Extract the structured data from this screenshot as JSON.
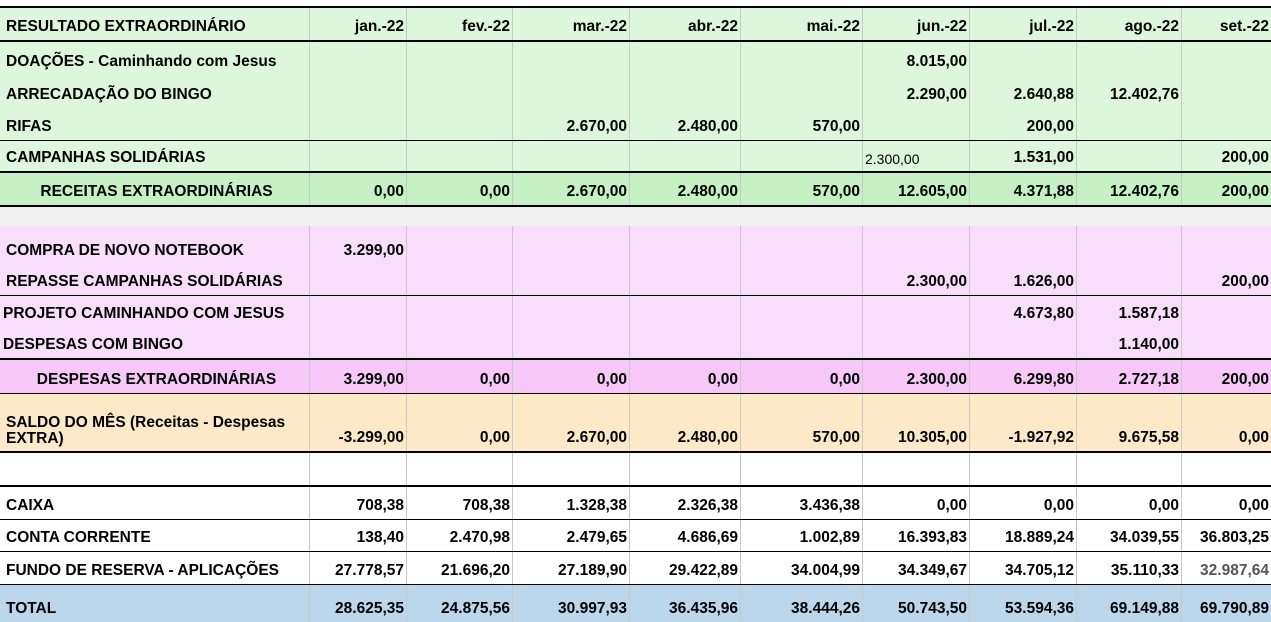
{
  "header": {
    "title": "RESULTADO EXTRAORDINÁRIO",
    "months": [
      "jan.-22",
      "fev.-22",
      "mar.-22",
      "abr.-22",
      "mai.-22",
      "jun.-22",
      "jul.-22",
      "ago.-22",
      "set.-22"
    ]
  },
  "receitas": [
    {
      "label": "DOAÇÕES - Caminhando com Jesus",
      "values": [
        "",
        "",
        "",
        "",
        "",
        "8.015,00",
        "",
        "",
        ""
      ]
    },
    {
      "label": "ARRECADAÇÃO DO BINGO",
      "values": [
        "",
        "",
        "",
        "",
        "",
        "2.290,00",
        "2.640,88",
        "12.402,76",
        ""
      ]
    },
    {
      "label": "RIFAS",
      "values": [
        "",
        "",
        "2.670,00",
        "2.480,00",
        "570,00",
        "",
        "200,00",
        "",
        ""
      ]
    },
    {
      "label": "CAMPANHAS SOLIDÁRIAS",
      "values": [
        "",
        "",
        "",
        "",
        "",
        "2.300,00",
        "1.531,00",
        "",
        "200,00"
      ]
    }
  ],
  "receitas_total": {
    "label": "RECEITAS EXTRAORDINÁRIAS",
    "values": [
      "0,00",
      "0,00",
      "2.670,00",
      "2.480,00",
      "570,00",
      "12.605,00",
      "4.371,88",
      "12.402,76",
      "200,00"
    ]
  },
  "despesas": [
    {
      "label": "COMPRA DE NOVO NOTEBOOK",
      "values": [
        "3.299,00",
        "",
        "",
        "",
        "",
        "",
        "",
        "",
        ""
      ]
    },
    {
      "label": "REPASSE CAMPANHAS SOLIDÁRIAS",
      "values": [
        "",
        "",
        "",
        "",
        "",
        "2.300,00",
        "1.626,00",
        "",
        "200,00"
      ]
    },
    {
      "label": "PROJETO CAMINHANDO COM JESUS",
      "values": [
        "",
        "",
        "",
        "",
        "",
        "",
        "4.673,80",
        "1.587,18",
        ""
      ]
    },
    {
      "label": "DESPESAS COM BINGO",
      "values": [
        "",
        "",
        "",
        "",
        "",
        "",
        "",
        "1.140,00",
        ""
      ]
    }
  ],
  "despesas_total": {
    "label": "DESPESAS EXTRAORDINÁRIAS",
    "values": [
      "3.299,00",
      "0,00",
      "0,00",
      "0,00",
      "0,00",
      "2.300,00",
      "6.299,80",
      "2.727,18",
      "200,00"
    ]
  },
  "saldo": {
    "label": "SALDO DO MÊS (Receitas - Despesas EXTRA)",
    "values": [
      "-3.299,00",
      "0,00",
      "2.670,00",
      "2.480,00",
      "570,00",
      "10.305,00",
      "-1.927,92",
      "9.675,58",
      "0,00"
    ]
  },
  "contas": [
    {
      "label": "CAIXA",
      "values": [
        "708,38",
        "708,38",
        "1.328,38",
        "2.326,38",
        "3.436,38",
        "0,00",
        "0,00",
        "0,00",
        "0,00"
      ]
    },
    {
      "label": "CONTA CORRENTE",
      "values": [
        "138,40",
        "2.470,98",
        "2.479,65",
        "4.686,69",
        "1.002,89",
        "16.393,83",
        "18.889,24",
        "34.039,55",
        "36.803,25"
      ]
    },
    {
      "label": "FUNDO DE RESERVA - APLICAÇÕES",
      "values": [
        "27.778,57",
        "21.696,20",
        "27.189,90",
        "29.422,89",
        "34.004,99",
        "34.349,67",
        "34.705,12",
        "35.110,33",
        "32.987,64"
      ]
    }
  ],
  "total": {
    "label": "TOTAL",
    "values": [
      "28.625,35",
      "24.875,56",
      "30.997,93",
      "36.435,96",
      "38.444,26",
      "50.743,50",
      "53.594,36",
      "69.149,88",
      "69.790,89"
    ]
  },
  "colors": {
    "green": "#ddf7dc",
    "green_total": "#c6f1c4",
    "pink": "#f8defa",
    "pink_total": "#f6c8f8",
    "peach": "#fde9c7",
    "blue": "#bcd6ec"
  }
}
